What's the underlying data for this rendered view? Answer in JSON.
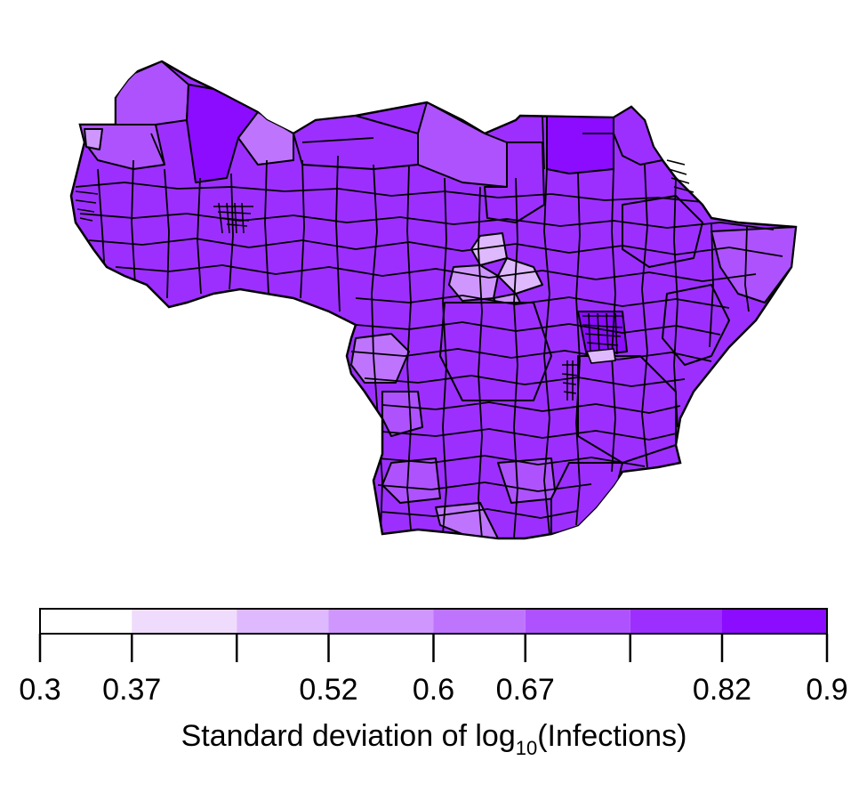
{
  "legend": {
    "title_prefix": "Standard deviation of log",
    "title_subscript": "10",
    "title_suffix": "(Infections)",
    "bins": [
      0.3,
      0.37,
      0.45,
      0.52,
      0.6,
      0.67,
      0.75,
      0.82,
      0.9
    ],
    "tick_labels": [
      "0.3",
      "0.37",
      "",
      "0.52",
      "0.6",
      "0.67",
      "",
      "0.82",
      "0.9"
    ],
    "colors": [
      "#ffffff",
      "#efdcfc",
      "#dfb9fd",
      "#cf97fd",
      "#bf74fe",
      "#ae52fe",
      "#9d2ffe",
      "#8c0cff"
    ]
  },
  "map": {
    "outline_color": "#000000",
    "region_fill_default": "#9d2ffe"
  }
}
